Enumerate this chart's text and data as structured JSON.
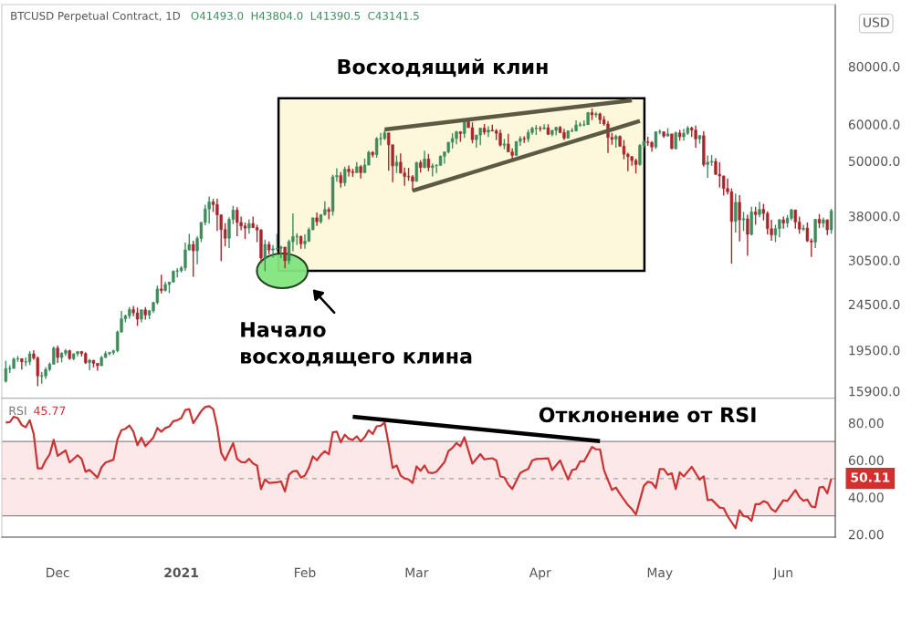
{
  "chart_data": [
    {
      "type": "candlestick",
      "title": "Восходящий клин",
      "annotations": [
        "BTCUSD Perpetual Contract, 1D",
        "O41493.0  H43804.0  L41390.5  C43141.5",
        "Начало\nвосходящего клина",
        "USD"
      ],
      "colors": [
        "#3d8c5c",
        "#3d8c5c",
        "#3d8c5c",
        "#3d8c5c",
        "#a8262b",
        "#3d8c5c",
        "#3d8c5c",
        "#a8262b",
        "#a8262b",
        "#3d8c5c",
        "#3d8c5c",
        "#3d8c5c",
        "#3d8c5c",
        "#a8262b",
        "#3d8c5c",
        "#3d8c5c",
        "#a8262b",
        "#3d8c5c",
        "#3d8c5c",
        "#a8262b",
        "#a8262b",
        "#3d8c5c",
        "#a8262b",
        "#a8262b",
        "#3d8c5c",
        "#3d8c5c",
        "#3d8c5c",
        "#3d8c5c",
        "#3d8c5c",
        "#3d8c5c",
        "#3d8c5c",
        "#3d8c5c",
        "#a8262b",
        "#a8262b",
        "#3d8c5c",
        "#a8262b",
        "#3d8c5c",
        "#3d8c5c",
        "#3d8c5c",
        "#a8262b",
        "#3d8c5c",
        "#3d8c5c",
        "#3d8c5c",
        "#3d8c5c",
        "#3d8c5c",
        "#3d8c5c",
        "#3d8c5c",
        "#a8262b",
        "#3d8c5c",
        "#3d8c5c",
        "#3d8c5c",
        "#3d8c5c",
        "#a8262b",
        "#a8262b",
        "#a8262b",
        "#a8262b",
        "#3d8c5c",
        "#3d8c5c",
        "#a8262b",
        "#a8262b",
        "#a8262b",
        "#3d8c5c",
        "#a8262b",
        "#a8262b",
        "#a8262b",
        "#3d8c5c",
        "#a8262b",
        "#3d8c5c",
        "#3d8c5c",
        "#3d8c5c",
        "#a8262b",
        "#3d8c5c",
        "#3d8c5c",
        "#3d8c5c",
        "#a8262b",
        "#3d8c5c",
        "#3d8c5c",
        "#3d8c5c",
        "#a8262b",
        "#3d8c5c",
        "#3d8c5c",
        "#a8262b",
        "#3d8c5c",
        "#3d8c5c",
        "#a8262b",
        "#3d8c5c",
        "#a8262b",
        "#a8262b",
        "#3d8c5c",
        "#a8262b",
        "#3d8c5c",
        "#3d8c5c",
        "#a8262b",
        "#3d8c5c",
        "#3d8c5c",
        "#3d8c5c",
        "#a8262b",
        "#a8262b",
        "#3d8c5c",
        "#a8262b",
        "#a8262b",
        "#a8262b",
        "#a8262b",
        "#3d8c5c",
        "#a8262b",
        "#3d8c5c",
        "#a8262b",
        "#3d8c5c",
        "#3d8c5c",
        "#3d8c5c",
        "#3d8c5c",
        "#3d8c5c",
        "#3d8c5c",
        "#3d8c5c",
        "#a8262b",
        "#3d8c5c",
        "#a8262b",
        "#a8262b",
        "#3d8c5c",
        "#3d8c5c",
        "#a8262b",
        "#3d8c5c",
        "#a8262b",
        "#a8262b",
        "#a8262b",
        "#3d8c5c",
        "#a8262b",
        "#a8262b",
        "#3d8c5c",
        "#3d8c5c",
        "#a8262b",
        "#3d8c5c",
        "#3d8c5c",
        "#3d8c5c",
        "#a8262b",
        "#3d8c5c",
        "#a8262b",
        "#3d8c5c",
        "#3d8c5c",
        "#a8262b",
        "#a8262b",
        "#3d8c5c",
        "#3d8c5c",
        "#3d8c5c",
        "#3d8c5c",
        "#3d8c5c",
        "#3d8c5c",
        "#a8262b",
        "#3d8c5c",
        "#a8262b",
        "#a8262b",
        "#a8262b",
        "#a8262b",
        "#3d8c5c",
        "#a8262b",
        "#a8262b",
        "#a8262b",
        "#a8262b",
        "#a8262b",
        "#3d8c5c",
        "#3d8c5c",
        "#a8262b",
        "#a8262b",
        "#3d8c5c",
        "#3d8c5c",
        "#a8262b",
        "#3d8c5c",
        "#a8262b",
        "#3d8c5c",
        "#a8262b",
        "#3d8c5c",
        "#3d8c5c",
        "#a8262b",
        "#a8262b",
        "#3d8c5c",
        "#a8262b",
        "#3d8c5c",
        "#3d8c5c",
        "#a8262b",
        "#a8262b",
        "#a8262b",
        "#a8262b",
        "#a8262b",
        "#3d8c5c",
        "#a8262b",
        "#3d8c5c",
        "#a8262b",
        "#3d8c5c",
        "#a8262b",
        "#3d8c5c",
        "#a8262b",
        "#a8262b",
        "#a8262b",
        "#3d8c5c",
        "#3d8c5c",
        "#a8262b",
        "#3d8c5c",
        "#3d8c5c",
        "#a8262b",
        "#a8262b",
        "#3d8c5c",
        "#a8262b",
        "#a8262b",
        "#3d8c5c",
        "#a8262b",
        "#3d8c5c",
        "#a8262b",
        "#3d8c5c"
      ],
      "log": true,
      "tick_labels": "y",
      "xlim": [
        "2020-11-17",
        "2021-06-14"
      ],
      "ylim": [
        15330,
        108900
      ],
      "yticks": [
        {
          "value": 15900,
          "label": "15900.0"
        },
        {
          "value": 19500,
          "label": "19500.0"
        },
        {
          "value": 24500,
          "label": "24500.0"
        },
        {
          "value": 30500,
          "label": "30500.0"
        },
        {
          "value": 38000,
          "label": "38000.0"
        },
        {
          "value": 50000,
          "label": "50000.0"
        },
        {
          "value": 60000,
          "label": "60000.0"
        },
        {
          "value": 80000,
          "label": "80000.0"
        }
      ],
      "x": [
        "2020-11-18",
        "2020-11-19",
        "2020-11-20",
        "2020-11-21",
        "2020-11-22",
        "2020-11-23",
        "2020-11-24",
        "2020-11-25",
        "2020-11-26",
        "2020-11-27",
        "2020-11-28",
        "2020-11-29",
        "2020-11-30",
        "2020-12-01",
        "2020-12-02",
        "2020-12-03",
        "2020-12-04",
        "2020-12-05",
        "2020-12-06",
        "2020-12-07",
        "2020-12-08",
        "2020-12-09",
        "2020-12-10",
        "2020-12-11",
        "2020-12-12",
        "2020-12-13",
        "2020-12-14",
        "2020-12-15",
        "2020-12-16",
        "2020-12-17",
        "2020-12-18",
        "2020-12-19",
        "2020-12-20",
        "2020-12-21",
        "2020-12-22",
        "2020-12-23",
        "2020-12-24",
        "2020-12-25",
        "2020-12-26",
        "2020-12-27",
        "2020-12-28",
        "2020-12-29",
        "2020-12-30",
        "2020-12-31",
        "2021-01-01",
        "2021-01-02",
        "2021-01-03",
        "2021-01-04",
        "2021-01-05",
        "2021-01-06",
        "2021-01-07",
        "2021-01-08",
        "2021-01-09",
        "2021-01-10",
        "2021-01-11",
        "2021-01-12",
        "2021-01-13",
        "2021-01-14",
        "2021-01-15",
        "2021-01-16",
        "2021-01-17",
        "2021-01-18",
        "2021-01-19",
        "2021-01-20",
        "2021-01-21",
        "2021-01-22",
        "2021-01-23",
        "2021-01-24",
        "2021-01-25",
        "2021-01-26",
        "2021-01-27",
        "2021-01-28",
        "2021-01-29",
        "2021-01-30",
        "2021-01-31",
        "2021-02-01",
        "2021-02-02",
        "2021-02-03",
        "2021-02-04",
        "2021-02-05",
        "2021-02-06",
        "2021-02-07",
        "2021-02-08",
        "2021-02-09",
        "2021-02-10",
        "2021-02-11",
        "2021-02-12",
        "2021-02-13",
        "2021-02-14",
        "2021-02-15",
        "2021-02-16",
        "2021-02-17",
        "2021-02-18",
        "2021-02-19",
        "2021-02-20",
        "2021-02-21",
        "2021-02-22",
        "2021-02-23",
        "2021-02-24",
        "2021-02-25",
        "2021-02-26",
        "2021-02-27",
        "2021-02-28",
        "2021-03-01",
        "2021-03-02",
        "2021-03-03",
        "2021-03-04",
        "2021-03-05",
        "2021-03-06",
        "2021-03-07",
        "2021-03-08",
        "2021-03-09",
        "2021-03-10",
        "2021-03-11",
        "2021-03-12",
        "2021-03-13",
        "2021-03-14",
        "2021-03-15",
        "2021-03-16",
        "2021-03-17",
        "2021-03-18",
        "2021-03-19",
        "2021-03-20",
        "2021-03-21",
        "2021-03-22",
        "2021-03-23",
        "2021-03-24",
        "2021-03-25",
        "2021-03-26",
        "2021-03-27",
        "2021-03-28",
        "2021-03-29",
        "2021-03-30",
        "2021-03-31",
        "2021-04-01",
        "2021-04-02",
        "2021-04-03",
        "2021-04-04",
        "2021-04-05",
        "2021-04-06",
        "2021-04-07",
        "2021-04-08",
        "2021-04-09",
        "2021-04-10",
        "2021-04-11",
        "2021-04-12",
        "2021-04-13",
        "2021-04-14",
        "2021-04-15",
        "2021-04-16",
        "2021-04-17",
        "2021-04-18",
        "2021-04-19",
        "2021-04-20",
        "2021-04-21",
        "2021-04-22",
        "2021-04-23",
        "2021-04-24",
        "2021-04-25",
        "2021-04-26",
        "2021-04-27",
        "2021-04-28",
        "2021-04-29",
        "2021-04-30",
        "2021-05-01",
        "2021-05-02",
        "2021-05-03",
        "2021-05-04",
        "2021-05-05",
        "2021-05-06",
        "2021-05-07",
        "2021-05-08",
        "2021-05-09",
        "2021-05-10",
        "2021-05-11",
        "2021-05-12",
        "2021-05-13",
        "2021-05-14",
        "2021-05-15",
        "2021-05-16",
        "2021-05-17",
        "2021-05-18",
        "2021-05-19",
        "2021-05-20",
        "2021-05-21",
        "2021-05-22",
        "2021-05-23",
        "2021-05-24",
        "2021-05-25",
        "2021-05-26",
        "2021-05-27",
        "2021-05-28",
        "2021-05-29",
        "2021-05-30",
        "2021-05-31",
        "2021-06-01",
        "2021-06-02",
        "2021-06-03",
        "2021-06-04",
        "2021-06-05",
        "2021-06-06",
        "2021-06-07",
        "2021-06-08",
        "2021-06-09",
        "2021-06-10",
        "2021-06-11",
        "2021-06-12",
        "2021-06-13"
      ],
      "ohlc": [
        [
          16700,
          18500,
          16600,
          17800
        ],
        [
          17800,
          18100,
          17400,
          17800
        ],
        [
          17800,
          18800,
          17800,
          18650
        ],
        [
          18650,
          18950,
          18400,
          18700
        ],
        [
          18700,
          18700,
          17700,
          18400
        ],
        [
          18400,
          18800,
          18000,
          18400
        ],
        [
          18400,
          19400,
          18100,
          19150
        ],
        [
          19150,
          19500,
          18600,
          18750
        ],
        [
          18750,
          18900,
          16300,
          17150
        ],
        [
          17150,
          17500,
          16500,
          17150
        ],
        [
          17150,
          17900,
          16900,
          17720
        ],
        [
          17720,
          18350,
          17550,
          18180
        ],
        [
          18180,
          19850,
          18180,
          19700
        ],
        [
          19700,
          19950,
          18300,
          18800
        ],
        [
          18800,
          19300,
          18350,
          19200
        ],
        [
          19200,
          19600,
          18950,
          19450
        ],
        [
          19450,
          19550,
          18600,
          18700
        ],
        [
          18700,
          19200,
          18550,
          19150
        ],
        [
          19150,
          19400,
          18900,
          19360
        ],
        [
          19360,
          19420,
          18900,
          19170
        ],
        [
          19170,
          19300,
          18200,
          18320
        ],
        [
          18320,
          18650,
          17650,
          18550
        ],
        [
          18550,
          18560,
          17900,
          18260
        ],
        [
          18260,
          18280,
          17600,
          18050
        ],
        [
          18050,
          18950,
          18000,
          18800
        ],
        [
          18800,
          19400,
          18750,
          19170
        ],
        [
          19170,
          19350,
          19000,
          19270
        ],
        [
          19270,
          19550,
          19050,
          19440
        ],
        [
          19440,
          21500,
          19300,
          21350
        ],
        [
          21350,
          23700,
          21250,
          22800
        ],
        [
          22800,
          23250,
          22400,
          23140
        ],
        [
          23140,
          24150,
          22800,
          23870
        ],
        [
          23870,
          24300,
          23100,
          23480
        ],
        [
          23480,
          24100,
          22000,
          22750
        ],
        [
          22750,
          23850,
          22400,
          23830
        ],
        [
          23830,
          24150,
          22700,
          23230
        ],
        [
          23230,
          23800,
          22750,
          23730
        ],
        [
          23730,
          24800,
          23450,
          24710
        ],
        [
          24710,
          26900,
          24500,
          26440
        ],
        [
          26440,
          28400,
          25850,
          26250
        ],
        [
          26250,
          27400,
          26100,
          27040
        ],
        [
          27040,
          27400,
          25900,
          27370
        ],
        [
          27370,
          28990,
          27300,
          28880
        ],
        [
          28880,
          29350,
          28000,
          28950
        ],
        [
          28950,
          29650,
          28700,
          29370
        ],
        [
          29370,
          33300,
          28950,
          32120
        ],
        [
          32120,
          34800,
          32000,
          33000
        ],
        [
          33000,
          33600,
          28100,
          31970
        ],
        [
          31970,
          34400,
          29900,
          33990
        ],
        [
          33990,
          36900,
          33400,
          36820
        ],
        [
          36820,
          40200,
          36300,
          39370
        ],
        [
          39370,
          41900,
          36600,
          40790
        ],
        [
          40790,
          41400,
          38800,
          40250
        ],
        [
          40250,
          41400,
          35300,
          38240
        ],
        [
          38240,
          38300,
          30400,
          35540
        ],
        [
          35540,
          36700,
          32700,
          34030
        ],
        [
          34030,
          37800,
          32400,
          37390
        ],
        [
          37390,
          40000,
          36500,
          39150
        ],
        [
          39150,
          39700,
          34400,
          36820
        ],
        [
          36820,
          37900,
          35400,
          36180
        ],
        [
          36180,
          36800,
          33900,
          35790
        ],
        [
          35790,
          37400,
          34800,
          36630
        ],
        [
          36630,
          37900,
          35800,
          35890
        ],
        [
          35890,
          36400,
          33400,
          35470
        ],
        [
          35470,
          35600,
          30100,
          30830
        ],
        [
          30830,
          33800,
          28900,
          33010
        ],
        [
          33010,
          33500,
          31400,
          32100
        ],
        [
          32100,
          32900,
          30900,
          32290
        ],
        [
          32290,
          34800,
          31900,
          32370
        ],
        [
          32370,
          32800,
          30800,
          32570
        ],
        [
          32570,
          32600,
          29300,
          30430
        ],
        [
          30430,
          33800,
          29900,
          33470
        ],
        [
          33470,
          38500,
          31900,
          34320
        ],
        [
          34320,
          34900,
          32900,
          34320
        ],
        [
          34320,
          34500,
          32300,
          33110
        ],
        [
          33110,
          34700,
          32300,
          33540
        ],
        [
          33540,
          35900,
          33400,
          35520
        ],
        [
          35520,
          37700,
          35400,
          37680
        ],
        [
          37680,
          38700,
          36200,
          36950
        ],
        [
          36950,
          38300,
          36600,
          38290
        ],
        [
          38290,
          40900,
          38100,
          39260
        ],
        [
          39260,
          39700,
          37400,
          38900
        ],
        [
          38900,
          46700,
          38100,
          46200
        ],
        [
          46200,
          48200,
          45100,
          46480
        ],
        [
          46480,
          47300,
          43800,
          44850
        ],
        [
          44850,
          48600,
          44100,
          47990
        ],
        [
          47990,
          48900,
          46300,
          47400
        ],
        [
          47400,
          48100,
          46200,
          47190
        ],
        [
          47190,
          49700,
          47100,
          48580
        ],
        [
          48580,
          49000,
          45800,
          47170
        ],
        [
          47170,
          50600,
          47100,
          49000
        ],
        [
          49000,
          52600,
          48900,
          52200
        ],
        [
          52200,
          52500,
          50900,
          51570
        ],
        [
          51570,
          56300,
          50800,
          55900
        ],
        [
          55900,
          57500,
          54000,
          55900
        ],
        [
          55900,
          58300,
          55500,
          57500
        ],
        [
          57500,
          57500,
          47600,
          54200
        ],
        [
          54200,
          54200,
          45000,
          48800
        ],
        [
          48800,
          51400,
          47100,
          49700
        ],
        [
          49700,
          51900,
          47000,
          47100
        ],
        [
          47100,
          48400,
          44200,
          46300
        ],
        [
          46300,
          48300,
          45300,
          46200
        ],
        [
          46200,
          46600,
          43100,
          45200
        ],
        [
          45200,
          49800,
          45100,
          49600
        ],
        [
          49600,
          50200,
          47200,
          48400
        ],
        [
          48400,
          52600,
          48200,
          50500
        ],
        [
          50500,
          51800,
          47500,
          48400
        ],
        [
          48400,
          49400,
          46300,
          48800
        ],
        [
          48800,
          49200,
          47100,
          48900
        ],
        [
          48900,
          51400,
          48900,
          51200
        ],
        [
          51200,
          52400,
          49300,
          52300
        ],
        [
          52300,
          54900,
          51900,
          54900
        ],
        [
          54900,
          57400,
          53200,
          55900
        ],
        [
          55900,
          58100,
          54300,
          57800
        ],
        [
          57800,
          58000,
          55000,
          57300
        ],
        [
          57300,
          61700,
          56100,
          61200
        ],
        [
          61200,
          61600,
          59000,
          59000
        ],
        [
          59000,
          60600,
          54600,
          55600
        ],
        [
          55600,
          56900,
          53400,
          56900
        ],
        [
          56900,
          58900,
          54100,
          58900
        ],
        [
          58900,
          60100,
          57000,
          57700
        ],
        [
          57700,
          59400,
          56300,
          58300
        ],
        [
          58300,
          59900,
          57900,
          58100
        ],
        [
          58100,
          58600,
          55500,
          57400
        ],
        [
          57400,
          58400,
          53700,
          54100
        ],
        [
          54100,
          55800,
          53000,
          54400
        ],
        [
          54400,
          57200,
          52300,
          52300
        ],
        [
          52300,
          53200,
          50400,
          51400
        ],
        [
          51400,
          55100,
          51300,
          55100
        ],
        [
          55100,
          56600,
          53900,
          55900
        ],
        [
          55900,
          56500,
          54700,
          55800
        ],
        [
          55800,
          58400,
          54900,
          57600
        ],
        [
          57600,
          59300,
          57000,
          58800
        ],
        [
          58800,
          59800,
          56900,
          58800
        ],
        [
          58800,
          59500,
          57900,
          58700
        ],
        [
          58700,
          60000,
          58500,
          59000
        ],
        [
          59000,
          60000,
          56900,
          57100
        ],
        [
          57100,
          58400,
          56500,
          58200
        ],
        [
          58200,
          59300,
          56800,
          59100
        ],
        [
          59100,
          59500,
          57400,
          57600
        ],
        [
          57600,
          58700,
          55500,
          56000
        ],
        [
          56000,
          58200,
          55900,
          58100
        ],
        [
          58100,
          58900,
          57700,
          58100
        ],
        [
          58100,
          61200,
          57900,
          59800
        ],
        [
          59800,
          60700,
          59300,
          59800
        ],
        [
          59800,
          61200,
          59400,
          59900
        ],
        [
          59900,
          63800,
          59800,
          63600
        ],
        [
          63600,
          64900,
          61300,
          62900
        ],
        [
          62900,
          63800,
          62100,
          63200
        ],
        [
          63200,
          63600,
          60100,
          61400
        ],
        [
          61400,
          62500,
          59600,
          60100
        ],
        [
          60100,
          61000,
          52000,
          56200
        ],
        [
          56200,
          57500,
          54200,
          55700
        ],
        [
          55700,
          57000,
          53400,
          56500
        ],
        [
          56500,
          56800,
          53700,
          53800
        ],
        [
          53800,
          55500,
          50400,
          51700
        ],
        [
          51700,
          52100,
          47500,
          51100
        ],
        [
          51100,
          51200,
          48800,
          50100
        ],
        [
          50100,
          50600,
          47000,
          49100
        ],
        [
          49100,
          54400,
          48800,
          54000
        ],
        [
          54000,
          55500,
          53300,
          55000
        ],
        [
          55000,
          56400,
          53900,
          54800
        ],
        [
          54800,
          55200,
          52400,
          53600
        ],
        [
          53600,
          58000,
          53100,
          57800
        ],
        [
          57800,
          58500,
          57100,
          57800
        ],
        [
          57800,
          57900,
          56100,
          56600
        ],
        [
          56600,
          58900,
          56500,
          57200
        ],
        [
          57200,
          57200,
          53000,
          53200
        ],
        [
          53200,
          57900,
          52900,
          57500
        ],
        [
          57500,
          58400,
          55300,
          56400
        ],
        [
          56400,
          58700,
          55300,
          57400
        ],
        [
          57400,
          59500,
          56900,
          58900
        ],
        [
          58900,
          59300,
          56300,
          58300
        ],
        [
          58300,
          59600,
          53400,
          55800
        ],
        [
          55800,
          56900,
          54500,
          56700
        ],
        [
          56700,
          58000,
          48600,
          49100
        ],
        [
          49100,
          51400,
          46000,
          49700
        ],
        [
          49700,
          51500,
          48800,
          49900
        ],
        [
          49900,
          50700,
          46600,
          46800
        ],
        [
          46800,
          49700,
          43800,
          46400
        ],
        [
          46400,
          46500,
          42100,
          43600
        ],
        [
          43600,
          45800,
          42300,
          42900
        ],
        [
          42900,
          43600,
          30000,
          37000
        ],
        [
          37000,
          42500,
          35000,
          40700
        ],
        [
          40700,
          42200,
          33500,
          37300
        ],
        [
          37300,
          38800,
          35300,
          37500
        ],
        [
          37500,
          38300,
          31200,
          34700
        ],
        [
          34700,
          39800,
          34500,
          38800
        ],
        [
          38800,
          39800,
          36400,
          38300
        ],
        [
          38300,
          40800,
          37800,
          39300
        ],
        [
          39300,
          40400,
          37200,
          38500
        ],
        [
          38500,
          38900,
          34700,
          35700
        ],
        [
          35700,
          37300,
          33600,
          34600
        ],
        [
          34600,
          36400,
          33400,
          35700
        ],
        [
          35700,
          37500,
          34200,
          37300
        ],
        [
          37300,
          37900,
          35700,
          36700
        ],
        [
          36700,
          38200,
          35900,
          37600
        ],
        [
          37600,
          39400,
          37200,
          39200
        ],
        [
          39200,
          39200,
          35700,
          36900
        ],
        [
          36900,
          37900,
          34800,
          35600
        ],
        [
          35600,
          36400,
          35300,
          35800
        ],
        [
          35800,
          36800,
          33400,
          33600
        ],
        [
          33600,
          34000,
          31000,
          33400
        ],
        [
          33400,
          37500,
          32400,
          37400
        ],
        [
          37400,
          38400,
          35800,
          36700
        ],
        [
          36700,
          37700,
          35900,
          37300
        ],
        [
          37300,
          37400,
          34600,
          35500
        ],
        [
          35500,
          39400,
          34800,
          39000
        ]
      ],
      "series": [
        {
          "type": "line",
          "color": "#5c5a44",
          "x": [
            "2021-02-21",
            "2021-04-24"
          ],
          "values": [
            58500,
            67600
          ]
        },
        {
          "type": "line",
          "color": "#5c5a44",
          "x": [
            "2021-02-28",
            "2021-04-26"
          ],
          "values": [
            43100,
            61000
          ]
        }
      ]
    },
    {
      "type": "line",
      "annotations": [
        "Отклонение от RSI",
        "45.77",
        {
          "text": "50.11",
          "x": "2021-06-13",
          "y": 50.11
        }
      ],
      "xlim": [
        "2020-11-17",
        "2021-06-14"
      ],
      "ylim": [
        18.5,
        93.2
      ],
      "yticks": [
        {
          "value": 20,
          "label": "20.00"
        },
        {
          "value": 40,
          "label": "40.00"
        },
        {
          "value": 60,
          "label": "60.00"
        },
        {
          "value": 80,
          "label": "80.00"
        }
      ],
      "xticks": [
        {
          "value": "2020-12-01",
          "label": "Dec"
        },
        {
          "value": "2021-01-01",
          "label": "2021"
        },
        {
          "value": "2021-02-01",
          "label": "Feb"
        },
        {
          "value": "2021-03-01",
          "label": "Mar"
        },
        {
          "value": "2021-04-01",
          "label": "Apr"
        },
        {
          "value": "2021-05-01",
          "label": "May"
        },
        {
          "value": "2021-06-01",
          "label": "Jun"
        }
      ],
      "bands": [
        {
          "axis": "y",
          "from": 30,
          "to": 70,
          "color": "#fce8e8"
        }
      ],
      "ref_lines": [
        {
          "axis": "y",
          "value": 70,
          "color": "#8a8a8a"
        },
        {
          "axis": "y",
          "value": 50,
          "line_style": "dashed",
          "color": "#a0a0a0"
        },
        {
          "axis": "y",
          "value": 30,
          "color": "#8a8a8a"
        }
      ],
      "series": [
        {
          "name": "RSI",
          "color": "#cc3333",
          "x": [
            "2020-11-18",
            "2020-11-19",
            "2020-11-20",
            "2020-11-21",
            "2020-11-22",
            "2020-11-23",
            "2020-11-24",
            "2020-11-25",
            "2020-11-26",
            "2020-11-27",
            "2020-11-28",
            "2020-11-29",
            "2020-11-30",
            "2020-12-01",
            "2020-12-03",
            "2020-12-04",
            "2020-12-06",
            "2020-12-07",
            "2020-12-08",
            "2020-12-09",
            "2020-12-11",
            "2020-12-12",
            "2020-12-13",
            "2020-12-15",
            "2020-12-16",
            "2020-12-17",
            "2020-12-18",
            "2020-12-19",
            "2020-12-20",
            "2020-12-21",
            "2020-12-22",
            "2020-12-23",
            "2020-12-25",
            "2020-12-26",
            "2020-12-27",
            "2020-12-28",
            "2020-12-29",
            "2020-12-30",
            "2020-12-31",
            "2021-01-01",
            "2021-01-02",
            "2021-01-03",
            "2021-01-04",
            "2021-01-06",
            "2021-01-07",
            "2021-01-08",
            "2021-01-09",
            "2021-01-10",
            "2021-01-11",
            "2021-01-12",
            "2021-01-14",
            "2021-01-15",
            "2021-01-16",
            "2021-01-17",
            "2021-01-18",
            "2021-01-19",
            "2021-01-20",
            "2021-01-21",
            "2021-01-22",
            "2021-01-23",
            "2021-01-25",
            "2021-01-26",
            "2021-01-27",
            "2021-01-28",
            "2021-01-29",
            "2021-01-30",
            "2021-01-31",
            "2021-02-01",
            "2021-02-02",
            "2021-02-03",
            "2021-02-04",
            "2021-02-05",
            "2021-02-06",
            "2021-02-07",
            "2021-02-08",
            "2021-02-09",
            "2021-02-10",
            "2021-02-11",
            "2021-02-12",
            "2021-02-13",
            "2021-02-14",
            "2021-02-15",
            "2021-02-16",
            "2021-02-17",
            "2021-02-18",
            "2021-02-19",
            "2021-02-20",
            "2021-02-21",
            "2021-02-22",
            "2021-02-23",
            "2021-02-24",
            "2021-02-25",
            "2021-02-26",
            "2021-02-27",
            "2021-02-28",
            "2021-03-01",
            "2021-03-02",
            "2021-03-03",
            "2021-03-04",
            "2021-03-05",
            "2021-03-06",
            "2021-03-08",
            "2021-03-09",
            "2021-03-10",
            "2021-03-11",
            "2021-03-12",
            "2021-03-13",
            "2021-03-15",
            "2021-03-17",
            "2021-03-18",
            "2021-03-20",
            "2021-03-21",
            "2021-03-22",
            "2021-03-23",
            "2021-03-24",
            "2021-03-25",
            "2021-03-27",
            "2021-03-28",
            "2021-03-29",
            "2021-03-30",
            "2021-03-31",
            "2021-04-03",
            "2021-04-04",
            "2021-04-06",
            "2021-04-08",
            "2021-04-09",
            "2021-04-10",
            "2021-04-11",
            "2021-04-12",
            "2021-04-14",
            "2021-04-15",
            "2021-04-16",
            "2021-04-17",
            "2021-04-19",
            "2021-04-20",
            "2021-04-21",
            "2021-04-23",
            "2021-04-24",
            "2021-04-25",
            "2021-04-27",
            "2021-04-28",
            "2021-04-29",
            "2021-04-30",
            "2021-05-01",
            "2021-05-02",
            "2021-05-03",
            "2021-05-04",
            "2021-05-05",
            "2021-05-06",
            "2021-05-07",
            "2021-05-09",
            "2021-05-11",
            "2021-05-12",
            "2021-05-13",
            "2021-05-14",
            "2021-05-16",
            "2021-05-17",
            "2021-05-18",
            "2021-05-20",
            "2021-05-21",
            "2021-05-22",
            "2021-05-23",
            "2021-05-24",
            "2021-05-25",
            "2021-05-26",
            "2021-05-27",
            "2021-05-28",
            "2021-05-29",
            "2021-05-30",
            "2021-06-01",
            "2021-06-02",
            "2021-06-04",
            "2021-06-05",
            "2021-06-06",
            "2021-06-07",
            "2021-06-08",
            "2021-06-09",
            "2021-06-10",
            "2021-06-11",
            "2021-06-12",
            "2021-06-13"
          ],
          "values": [
            80.2,
            80.5,
            83.4,
            82.6,
            78.9,
            77.7,
            81.5,
            74.0,
            55.5,
            55.5,
            59.9,
            63.1,
            70.9,
            62.3,
            65.2,
            58.7,
            62.6,
            60.7,
            53.7,
            54.7,
            50.6,
            56.1,
            58.7,
            60.2,
            71.2,
            76.1,
            76.9,
            78.6,
            75.3,
            68.0,
            72.1,
            67.5,
            72.1,
            77.3,
            75.3,
            77.3,
            78.1,
            81.0,
            81.5,
            82.6,
            87.0,
            87.5,
            79.9,
            86.4,
            88.6,
            89.1,
            87.5,
            77.8,
            63.9,
            59.9,
            69.1,
            60.7,
            59.0,
            58.7,
            60.7,
            58.2,
            57.1,
            44.4,
            49.6,
            47.7,
            48.0,
            48.5,
            43.1,
            52.1,
            53.9,
            54.2,
            50.6,
            51.7,
            55.8,
            62.0,
            59.9,
            62.8,
            64.8,
            63.1,
            75.0,
            75.3,
            69.6,
            73.7,
            71.5,
            70.9,
            72.8,
            70.1,
            72.4,
            76.1,
            74.0,
            78.2,
            78.5,
            80.2,
            68.8,
            55.8,
            57.1,
            51.7,
            50.1,
            49.6,
            47.7,
            56.6,
            54.2,
            57.1,
            53.3,
            53.0,
            53.8,
            58.9,
            64.9,
            66.6,
            69.2,
            67.5,
            72.3,
            58.1,
            63.2,
            60.4,
            61.0,
            59.8,
            51.2,
            50.7,
            46.9,
            44.4,
            53.0,
            54.3,
            55.2,
            59.8,
            60.6,
            61.0,
            54.6,
            59.8,
            49.5,
            54.6,
            55.2,
            59.3,
            59.3,
            67.1,
            65.8,
            65.8,
            54.6,
            43.9,
            45.2,
            41.8,
            35.8,
            33.6,
            30.7,
            46.1,
            48.3,
            47.8,
            44.9,
            55.2,
            55.2,
            52.1,
            52.9,
            44.4,
            53.4,
            51.2,
            56.4,
            49.5,
            51.2,
            38.4,
            38.7,
            34.4,
            34.1,
            29.8,
            23.3,
            32.9,
            29.8,
            29.5,
            27.2,
            36.3,
            36.2,
            37.9,
            37.0,
            33.6,
            32.2,
            38.4,
            38.0,
            43.9,
            40.1,
            38.1,
            38.7,
            35.0,
            34.6,
            45.2,
            45.6,
            42.1,
            50.11
          ]
        },
        {
          "color": "#000000",
          "x": [
            "2021-02-13",
            "2021-04-16"
          ],
          "values": [
            83.4,
            70.2
          ]
        }
      ]
    }
  ]
}
